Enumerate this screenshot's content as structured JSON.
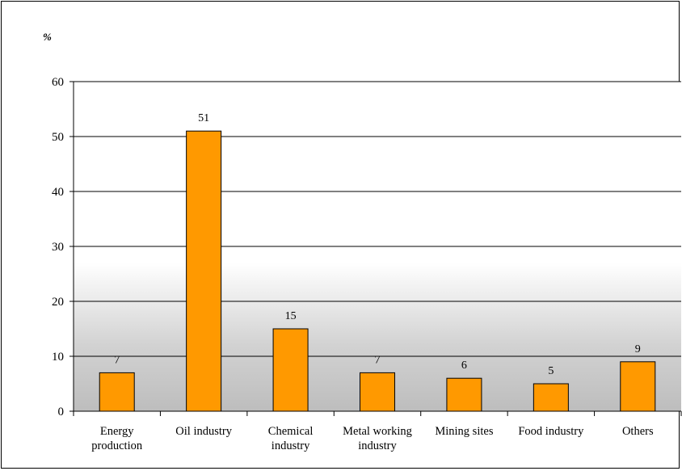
{
  "chart_data": {
    "type": "bar",
    "title": "",
    "ylabel": "%",
    "xlabel": "",
    "ylim": [
      0,
      60
    ],
    "yticks": [
      0,
      10,
      20,
      30,
      40,
      50,
      60
    ],
    "grid": true,
    "legend": "none",
    "categories": [
      [
        "Energy",
        "production"
      ],
      [
        "Oil industry"
      ],
      [
        "Chemical",
        "industry"
      ],
      [
        "Metal working",
        "industry"
      ],
      [
        "Mining sites"
      ],
      [
        "Food industry"
      ],
      [
        "Others"
      ]
    ],
    "values": [
      7,
      51,
      15,
      7,
      6,
      5,
      9
    ],
    "data_labels": [
      "7",
      "51",
      "15",
      "7",
      "6",
      "5",
      "9"
    ],
    "colors": {
      "bar_fill": "#ff9900",
      "bar_stroke": "#000000",
      "plot_gradient_top": "#ffffff",
      "plot_gradient_bottom": "#bdbdbd",
      "gridline": "#000000"
    }
  }
}
